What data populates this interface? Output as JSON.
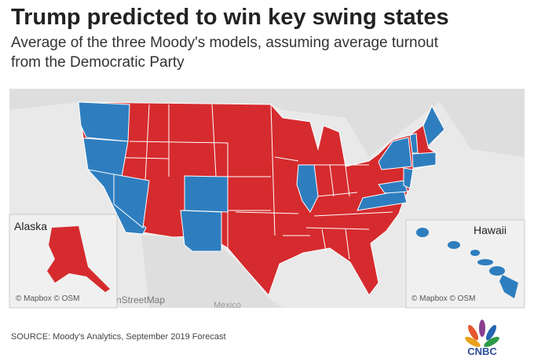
{
  "header": {
    "title": "Trump predicted to win key swing states",
    "subtitle": [
      "Average of the three Moody's models, assuming average turnout",
      "from the Democratic Party"
    ]
  },
  "map": {
    "insets": [
      {
        "label": "Alaska",
        "attribution": "© Mapbox © OSM"
      },
      {
        "label": "Hawaii",
        "attribution": "© Mapbox © OSM"
      }
    ],
    "labels": [
      "nStreetMap",
      "Mexico"
    ]
  },
  "footer": {
    "source": "SOURCE: Moody's Analytics, September 2019 Forecast",
    "logo": "CNBC"
  }
}
